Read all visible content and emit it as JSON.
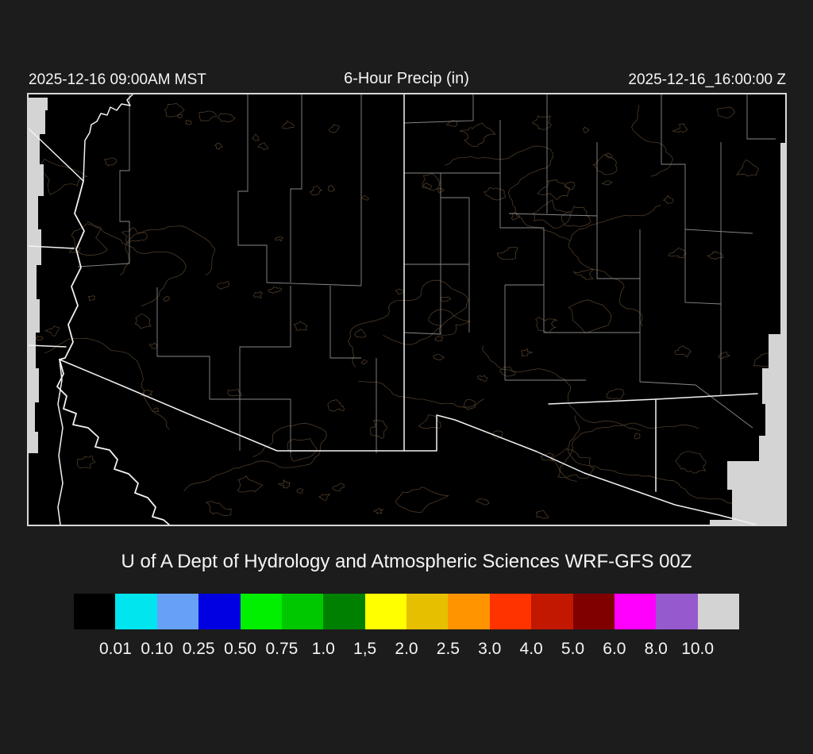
{
  "header": {
    "left_timestamp": "2025-12-16 09:00AM MST",
    "title": "6-Hour Precip (in)",
    "right_timestamp": "2025-12-16_16:00:00 Z"
  },
  "caption": "U of A Dept of Hydrology and Atmospheric Sciences WRF-GFS 00Z",
  "map": {
    "colors": {
      "background": "#000000",
      "frame": "#d8d8d8",
      "state_border": "#f2f2f2",
      "county_border": "#989898",
      "terrain_contour": "#4e3b28",
      "out_of_domain": "#d4d4d4"
    }
  },
  "legend": {
    "units": "in",
    "colors": [
      "#000000",
      "#00e5ee",
      "#66a1f7",
      "#0000e0",
      "#00f000",
      "#00c800",
      "#008000",
      "#ffff00",
      "#e6c000",
      "#ff9400",
      "#ff3300",
      "#c21800",
      "#800000",
      "#ff00ff",
      "#9659ce",
      "#d3d3d3"
    ],
    "tick_labels": [
      "0.01",
      "0.10",
      "0.25",
      "0.50",
      "0.75",
      "1.0",
      "1,5",
      "2.0",
      "2.5",
      "3.0",
      "4.0",
      "5.0",
      "6.0",
      "8.0",
      "10.0"
    ]
  },
  "chart_data": {
    "type": "heatmap",
    "title": "6-Hour Precip (in)",
    "legend_thresholds_in": [
      "0.01",
      "0.10",
      "0.25",
      "0.50",
      "0.75",
      "1.0",
      "1,5",
      "2.0",
      "2.5",
      "3.0",
      "4.0",
      "5.0",
      "6.0",
      "8.0",
      "10.0"
    ],
    "legend_position": "bottom",
    "note_visible_values": "entire map below 0.01 in (black)"
  }
}
